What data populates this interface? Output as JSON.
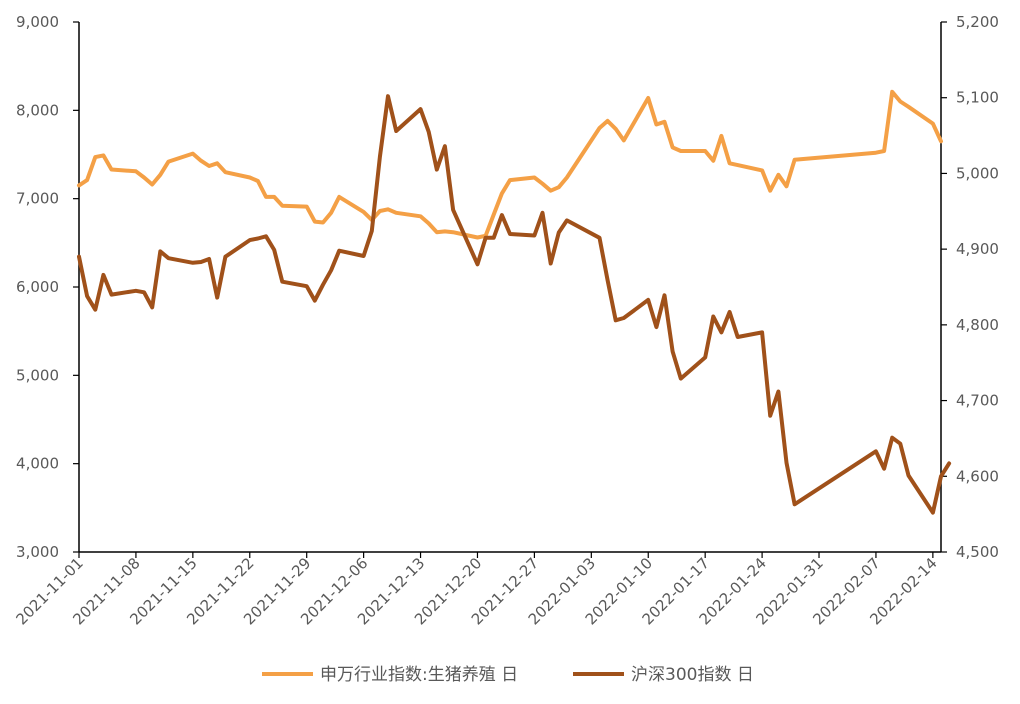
{
  "chart_data": {
    "type": "line",
    "x_type": "date",
    "x_ticks": [
      "2021-11-01",
      "2021-11-08",
      "2021-11-15",
      "2021-11-22",
      "2021-11-29",
      "2021-12-06",
      "2021-12-13",
      "2021-12-20",
      "2021-12-27",
      "2022-01-03",
      "2022-01-10",
      "2022-01-17",
      "2022-01-24",
      "2022-01-31",
      "2022-02-07",
      "2022-02-14"
    ],
    "x_range": [
      "2021-11-01",
      "2022-02-15"
    ],
    "y_left": {
      "range": [
        3000,
        9000
      ],
      "ticks": [
        3000,
        4000,
        5000,
        6000,
        7000,
        8000,
        9000
      ],
      "tick_labels": [
        "3,000",
        "4,000",
        "5,000",
        "6,000",
        "7,000",
        "8,000",
        "9,000"
      ]
    },
    "y_right": {
      "range": [
        4500,
        5200
      ],
      "ticks": [
        4500,
        4600,
        4700,
        4800,
        4900,
        5000,
        5100,
        5200
      ],
      "tick_labels": [
        "4,500",
        "4,600",
        "4,700",
        "4,800",
        "4,900",
        "5,000",
        "5,100",
        "5,200"
      ]
    },
    "grid": false,
    "legend_position": "bottom",
    "series": [
      {
        "name": "申万行业指数:生猪养殖 日",
        "axis": "left",
        "color": "#F4A046",
        "points": [
          [
            "2021-11-01",
            7150
          ],
          [
            "2021-11-02",
            7210
          ],
          [
            "2021-11-03",
            7470
          ],
          [
            "2021-11-04",
            7490
          ],
          [
            "2021-11-05",
            7330
          ],
          [
            "2021-11-08",
            7310
          ],
          [
            "2021-11-09",
            7240
          ],
          [
            "2021-11-10",
            7160
          ],
          [
            "2021-11-11",
            7270
          ],
          [
            "2021-11-12",
            7420
          ],
          [
            "2021-11-15",
            7510
          ],
          [
            "2021-11-16",
            7430
          ],
          [
            "2021-11-17",
            7370
          ],
          [
            "2021-11-18",
            7400
          ],
          [
            "2021-11-19",
            7300
          ],
          [
            "2021-11-22",
            7240
          ],
          [
            "2021-11-23",
            7200
          ],
          [
            "2021-11-24",
            7020
          ],
          [
            "2021-11-25",
            7020
          ],
          [
            "2021-11-26",
            6920
          ],
          [
            "2021-11-29",
            6910
          ],
          [
            "2021-11-30",
            6740
          ],
          [
            "2021-12-01",
            6730
          ],
          [
            "2021-12-02",
            6840
          ],
          [
            "2021-12-03",
            7020
          ],
          [
            "2021-12-06",
            6850
          ],
          [
            "2021-12-07",
            6760
          ],
          [
            "2021-12-08",
            6860
          ],
          [
            "2021-12-09",
            6880
          ],
          [
            "2021-12-10",
            6840
          ],
          [
            "2021-12-13",
            6800
          ],
          [
            "2021-12-14",
            6720
          ],
          [
            "2021-12-15",
            6620
          ],
          [
            "2021-12-16",
            6630
          ],
          [
            "2021-12-17",
            6620
          ],
          [
            "2021-12-20",
            6560
          ],
          [
            "2021-12-21",
            6580
          ],
          [
            "2021-12-22",
            6820
          ],
          [
            "2021-12-23",
            7060
          ],
          [
            "2021-12-24",
            7210
          ],
          [
            "2021-12-27",
            7240
          ],
          [
            "2021-12-28",
            7170
          ],
          [
            "2021-12-29",
            7090
          ],
          [
            "2021-12-30",
            7130
          ],
          [
            "2021-12-31",
            7240
          ],
          [
            "2022-01-04",
            7800
          ],
          [
            "2022-01-05",
            7880
          ],
          [
            "2022-01-06",
            7790
          ],
          [
            "2022-01-07",
            7660
          ],
          [
            "2022-01-10",
            8140
          ],
          [
            "2022-01-11",
            7840
          ],
          [
            "2022-01-12",
            7870
          ],
          [
            "2022-01-13",
            7580
          ],
          [
            "2022-01-14",
            7540
          ],
          [
            "2022-01-17",
            7540
          ],
          [
            "2022-01-18",
            7430
          ],
          [
            "2022-01-19",
            7710
          ],
          [
            "2022-01-20",
            7400
          ],
          [
            "2022-01-21",
            7380
          ],
          [
            "2022-01-24",
            7320
          ],
          [
            "2022-01-25",
            7090
          ],
          [
            "2022-01-26",
            7270
          ],
          [
            "2022-01-27",
            7140
          ],
          [
            "2022-01-28",
            7440
          ],
          [
            "2022-02-07",
            7520
          ],
          [
            "2022-02-08",
            7540
          ],
          [
            "2022-02-09",
            8210
          ],
          [
            "2022-02-10",
            8100
          ],
          [
            "2022-02-11",
            8040
          ],
          [
            "2022-02-14",
            7850
          ],
          [
            "2022-02-15",
            7650
          ]
        ]
      },
      {
        "name": "沪深300指数 日",
        "axis": "right",
        "color": "#A0511A",
        "points": [
          [
            "2021-11-01",
            4890
          ],
          [
            "2021-11-02",
            4838
          ],
          [
            "2021-11-03",
            4820
          ],
          [
            "2021-11-04",
            4866
          ],
          [
            "2021-11-05",
            4840
          ],
          [
            "2021-11-08",
            4845
          ],
          [
            "2021-11-09",
            4843
          ],
          [
            "2021-11-10",
            4823
          ],
          [
            "2021-11-11",
            4897
          ],
          [
            "2021-11-12",
            4888
          ],
          [
            "2021-11-15",
            4882
          ],
          [
            "2021-11-16",
            4883
          ],
          [
            "2021-11-17",
            4887
          ],
          [
            "2021-11-18",
            4836
          ],
          [
            "2021-11-19",
            4890
          ],
          [
            "2021-11-22",
            4912
          ],
          [
            "2021-11-23",
            4914
          ],
          [
            "2021-11-24",
            4917
          ],
          [
            "2021-11-25",
            4899
          ],
          [
            "2021-11-26",
            4857
          ],
          [
            "2021-11-29",
            4851
          ],
          [
            "2021-11-30",
            4832
          ],
          [
            "2021-12-01",
            4853
          ],
          [
            "2021-12-02",
            4872
          ],
          [
            "2021-12-03",
            4898
          ],
          [
            "2021-12-06",
            4891
          ],
          [
            "2021-12-07",
            4924
          ],
          [
            "2021-12-08",
            5022
          ],
          [
            "2021-12-09",
            5102
          ],
          [
            "2021-12-10",
            5056
          ],
          [
            "2021-12-13",
            5085
          ],
          [
            "2021-12-14",
            5055
          ],
          [
            "2021-12-15",
            5005
          ],
          [
            "2021-12-16",
            5036
          ],
          [
            "2021-12-17",
            4952
          ],
          [
            "2021-12-20",
            4880
          ],
          [
            "2021-12-21",
            4915
          ],
          [
            "2021-12-22",
            4915
          ],
          [
            "2021-12-23",
            4945
          ],
          [
            "2021-12-24",
            4920
          ],
          [
            "2021-12-27",
            4918
          ],
          [
            "2021-12-28",
            4948
          ],
          [
            "2021-12-29",
            4881
          ],
          [
            "2021-12-30",
            4922
          ],
          [
            "2021-12-31",
            4938
          ],
          [
            "2022-01-04",
            4915
          ],
          [
            "2022-01-05",
            4859
          ],
          [
            "2022-01-06",
            4806
          ],
          [
            "2022-01-07",
            4809
          ],
          [
            "2022-01-10",
            4833
          ],
          [
            "2022-01-11",
            4797
          ],
          [
            "2022-01-12",
            4839
          ],
          [
            "2022-01-13",
            4765
          ],
          [
            "2022-01-14",
            4729
          ],
          [
            "2022-01-17",
            4757
          ],
          [
            "2022-01-18",
            4811
          ],
          [
            "2022-01-19",
            4790
          ],
          [
            "2022-01-20",
            4817
          ],
          [
            "2022-01-21",
            4784
          ],
          [
            "2022-01-24",
            4790
          ],
          [
            "2022-01-25",
            4680
          ],
          [
            "2022-01-26",
            4712
          ],
          [
            "2022-01-27",
            4618
          ],
          [
            "2022-01-28",
            4563
          ],
          [
            "2022-02-07",
            4633
          ],
          [
            "2022-02-08",
            4610
          ],
          [
            "2022-02-09",
            4651
          ],
          [
            "2022-02-10",
            4643
          ],
          [
            "2022-02-11",
            4601
          ],
          [
            "2022-02-14",
            4552
          ],
          [
            "2022-02-15",
            4600
          ],
          [
            "2022-02-16",
            4617
          ]
        ]
      }
    ]
  }
}
